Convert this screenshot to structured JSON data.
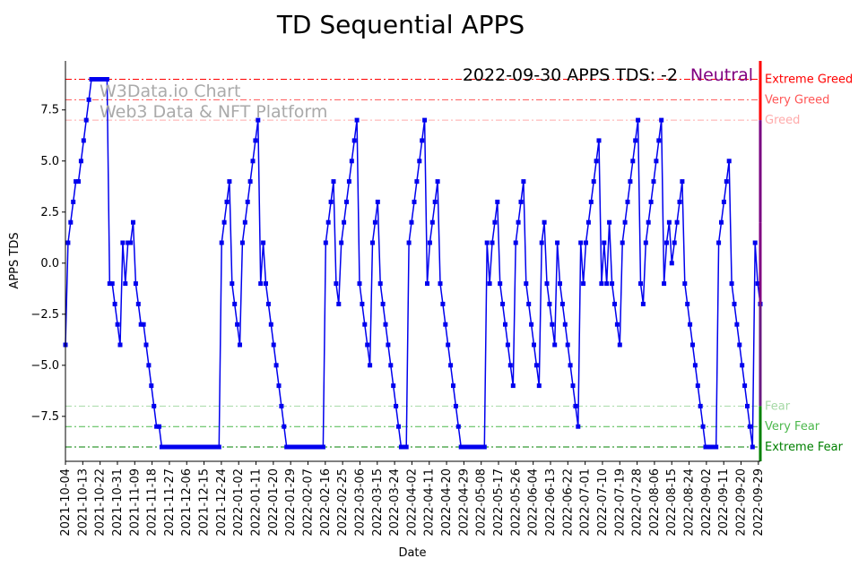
{
  "chart_data": {
    "type": "line",
    "title": "TD Sequential APPS",
    "xlabel": "Date",
    "ylabel": "APPS TDS",
    "annotation": "2022-09-30 APPS TDS: -2",
    "sentiment": "Neutral",
    "watermark": [
      "W3Data.io Chart",
      "Web3 Data & NFT Platform"
    ],
    "ylim": [
      -9.7,
      9.9
    ],
    "yticks": [
      -7.5,
      -5.0,
      -2.5,
      0.0,
      2.5,
      5.0,
      7.5
    ],
    "ytick_labels": [
      "−7.5",
      "−5.0",
      "−2.5",
      "0.0",
      "2.5",
      "5.0",
      "7.5"
    ],
    "x_start": "2021-10-04",
    "x_end": "2022-09-30",
    "xtick_labels": [
      "2021-10-04",
      "2021-10-13",
      "2021-10-22",
      "2021-10-31",
      "2021-11-09",
      "2021-11-18",
      "2021-11-27",
      "2021-12-06",
      "2021-12-15",
      "2021-12-24",
      "2022-01-02",
      "2022-01-11",
      "2022-01-20",
      "2022-01-29",
      "2022-02-07",
      "2022-02-16",
      "2022-02-25",
      "2022-03-06",
      "2022-03-15",
      "2022-03-24",
      "2022-04-02",
      "2022-04-11",
      "2022-04-20",
      "2022-04-29",
      "2022-05-08",
      "2022-05-17",
      "2022-05-26",
      "2022-06-04",
      "2022-06-13",
      "2022-06-22",
      "2022-07-01",
      "2022-07-10",
      "2022-07-19",
      "2022-07-28",
      "2022-08-06",
      "2022-08-15",
      "2022-08-24",
      "2022-09-02",
      "2022-09-11",
      "2022-09-20",
      "2022-09-29"
    ],
    "levels": [
      {
        "value": 9,
        "label": "Extreme Greed",
        "color": "#ff0000"
      },
      {
        "value": 8,
        "label": "Very Greed",
        "color": "#ff5555"
      },
      {
        "value": 7,
        "label": "Greed",
        "color": "#ffaaaa"
      },
      {
        "value": -7,
        "label": "Fear",
        "color": "#a6d9a6"
      },
      {
        "value": -8,
        "label": "Very Fear",
        "color": "#4cb84c"
      },
      {
        "value": -9,
        "label": "Extreme Fear",
        "color": "#008000"
      }
    ],
    "series": [
      {
        "color": "#0000ee",
        "values": [
          -4,
          1,
          2,
          3,
          4,
          4,
          5,
          6,
          7,
          8,
          9,
          9,
          9,
          9,
          9,
          9,
          9,
          -1,
          -1,
          -2,
          -3,
          -4,
          1,
          -1,
          1,
          1,
          2,
          -1,
          -2,
          -3,
          -3,
          -4,
          -5,
          -6,
          -7,
          -8,
          -8,
          -9,
          -9,
          -9,
          -9,
          -9,
          -9,
          -9,
          -9,
          -9,
          -9,
          -9,
          -9,
          -9,
          -9,
          -9,
          -9,
          -9,
          -9,
          -9,
          -9,
          -9,
          -9,
          -9,
          1,
          2,
          3,
          4,
          -1,
          -2,
          -3,
          -4,
          1,
          2,
          3,
          4,
          5,
          6,
          7,
          -1,
          1,
          -1,
          -2,
          -3,
          -4,
          -5,
          -6,
          -7,
          -8,
          -9,
          -9,
          -9,
          -9,
          -9,
          -9,
          -9,
          -9,
          -9,
          -9,
          -9,
          -9,
          -9,
          -9,
          -9,
          1,
          2,
          3,
          4,
          -1,
          -2,
          1,
          2,
          3,
          4,
          5,
          6,
          7,
          -1,
          -2,
          -3,
          -4,
          -5,
          1,
          2,
          3,
          -1,
          -2,
          -3,
          -4,
          -5,
          -6,
          -7,
          -8,
          -9,
          -9,
          -9,
          1,
          2,
          3,
          4,
          5,
          6,
          7,
          -1,
          1,
          2,
          3,
          4,
          -1,
          -2,
          -3,
          -4,
          -5,
          -6,
          -7,
          -8,
          -9,
          -9,
          -9,
          -9,
          -9,
          -9,
          -9,
          -9,
          -9,
          -9,
          1,
          -1,
          1,
          2,
          3,
          -1,
          -2,
          -3,
          -4,
          -5,
          -6,
          1,
          2,
          3,
          4,
          -1,
          -2,
          -3,
          -4,
          -5,
          -6,
          1,
          2,
          -1,
          -2,
          -3,
          -4,
          1,
          -1,
          -2,
          -3,
          -4,
          -5,
          -6,
          -7,
          -8,
          1,
          -1,
          1,
          2,
          3,
          4,
          5,
          6,
          -1,
          1,
          -1,
          2,
          -1,
          -2,
          -3,
          -4,
          1,
          2,
          3,
          4,
          5,
          6,
          7,
          -1,
          -2,
          1,
          2,
          3,
          4,
          5,
          6,
          7,
          -1,
          1,
          2,
          0,
          1,
          2,
          3,
          4,
          -1,
          -2,
          -3,
          -4,
          -5,
          -6,
          -7,
          -8,
          -9,
          -9,
          -9,
          -9,
          -9,
          1,
          2,
          3,
          4,
          5,
          -1,
          -2,
          -3,
          -4,
          -5,
          -6,
          -7,
          -8,
          -9,
          1,
          -1,
          -2
        ]
      }
    ]
  }
}
